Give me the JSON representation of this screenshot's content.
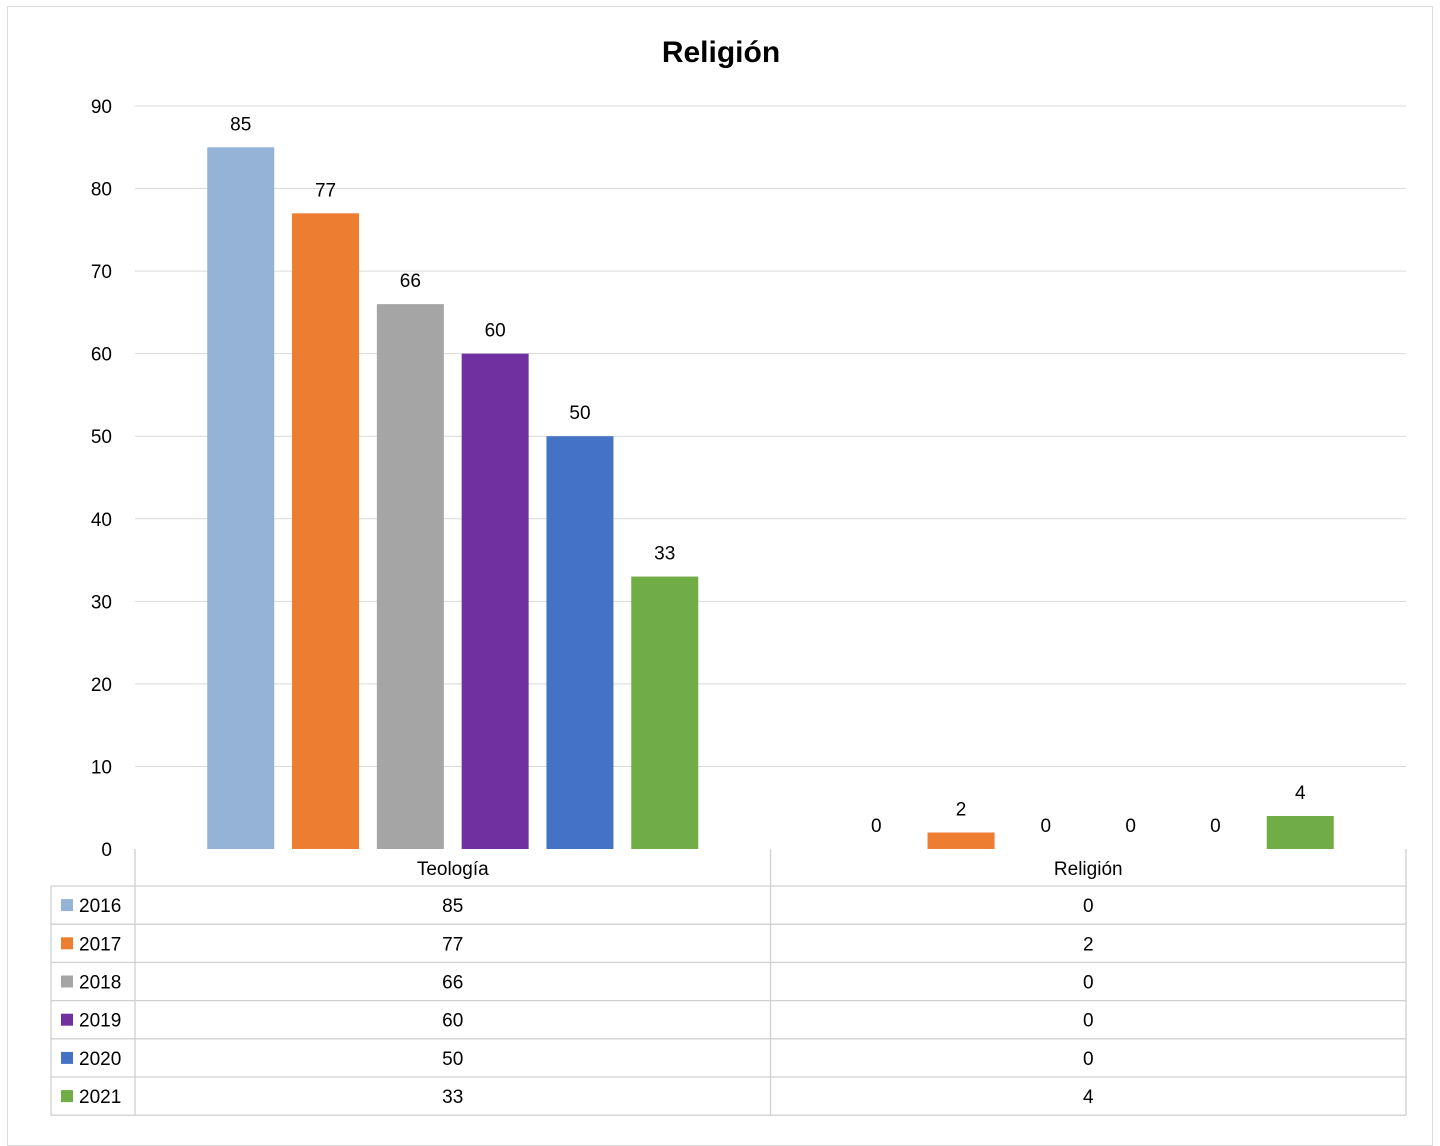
{
  "chart_data": {
    "type": "bar",
    "title": "Religión",
    "categories": [
      "Teología",
      "Religión"
    ],
    "series": [
      {
        "name": "2016",
        "color": "#95b3d7",
        "values": [
          85,
          0
        ]
      },
      {
        "name": "2017",
        "color": "#ed7d31",
        "values": [
          77,
          2
        ]
      },
      {
        "name": "2018",
        "color": "#a5a5a5",
        "values": [
          66,
          0
        ]
      },
      {
        "name": "2019",
        "color": "#7030a0",
        "values": [
          60,
          0
        ]
      },
      {
        "name": "2020",
        "color": "#4472c4",
        "values": [
          50,
          0
        ]
      },
      {
        "name": "2021",
        "color": "#70ad47",
        "values": [
          33,
          4
        ]
      }
    ],
    "ylim": [
      0,
      90
    ],
    "yticks": [
      0,
      10,
      20,
      30,
      40,
      50,
      60,
      70,
      80,
      90
    ],
    "grid": true,
    "data_labels": true,
    "legend": "data-table"
  }
}
